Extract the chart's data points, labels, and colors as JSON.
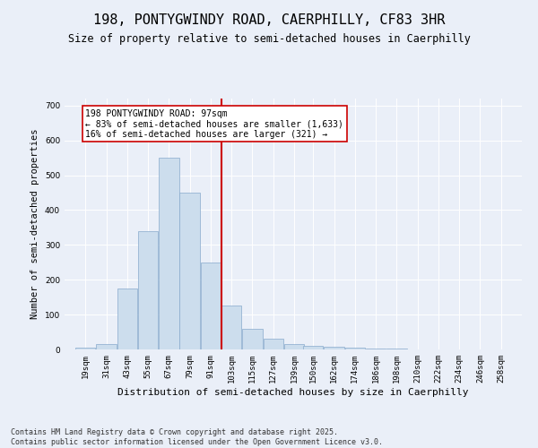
{
  "title1": "198, PONTYGWINDY ROAD, CAERPHILLY, CF83 3HR",
  "title2": "Size of property relative to semi-detached houses in Caerphilly",
  "xlabel": "Distribution of semi-detached houses by size in Caerphilly",
  "ylabel": "Number of semi-detached properties",
  "bar_centers": [
    19,
    31,
    43,
    55,
    67,
    79,
    91,
    103,
    115,
    127,
    139,
    150,
    162,
    174,
    186,
    198,
    210,
    222,
    234,
    246,
    258
  ],
  "bar_heights": [
    5,
    15,
    175,
    340,
    550,
    450,
    250,
    125,
    60,
    30,
    15,
    10,
    8,
    5,
    3,
    2,
    1,
    0,
    0,
    0,
    0
  ],
  "bar_width": 11.5,
  "tick_labels": [
    "19sqm",
    "31sqm",
    "43sqm",
    "55sqm",
    "67sqm",
    "79sqm",
    "91sqm",
    "103sqm",
    "115sqm",
    "127sqm",
    "139sqm",
    "150sqm",
    "162sqm",
    "174sqm",
    "186sqm",
    "198sqm",
    "210sqm",
    "222sqm",
    "234sqm",
    "246sqm",
    "258sqm"
  ],
  "tick_positions": [
    19,
    31,
    43,
    55,
    67,
    79,
    91,
    103,
    115,
    127,
    139,
    150,
    162,
    174,
    186,
    198,
    210,
    222,
    234,
    246,
    258
  ],
  "property_size": 97,
  "bar_color": "#ccdded",
  "bar_edge_color": "#88aacc",
  "vline_color": "#cc0000",
  "annotation_line1": "198 PONTYGWINDY ROAD: 97sqm",
  "annotation_line2": "← 83% of semi-detached houses are smaller (1,633)",
  "annotation_line3": "16% of semi-detached houses are larger (321) →",
  "annotation_box_color": "#ffffff",
  "annotation_box_edge": "#cc0000",
  "ylim": [
    0,
    720
  ],
  "yticks": [
    0,
    100,
    200,
    300,
    400,
    500,
    600,
    700
  ],
  "xlim": [
    7,
    270
  ],
  "background_color": "#eaeff8",
  "plot_bg_color": "#eaeff8",
  "footer": "Contains HM Land Registry data © Crown copyright and database right 2025.\nContains public sector information licensed under the Open Government Licence v3.0.",
  "title1_fontsize": 11,
  "title2_fontsize": 8.5,
  "xlabel_fontsize": 8,
  "ylabel_fontsize": 7.5,
  "tick_fontsize": 6.5,
  "annot_fontsize": 7,
  "footer_fontsize": 6
}
